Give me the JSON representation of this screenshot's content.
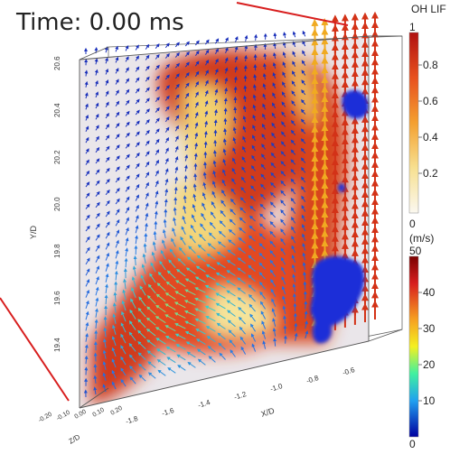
{
  "overlay": {
    "time_label": "Time: 0.00 ms"
  },
  "axes": {
    "x_label": "X/D",
    "y_label": "Y/D",
    "z_label": "Z/D",
    "x_ticks": [
      "-1.8",
      "-1.6",
      "-1.4",
      "-1.2",
      "-1.0",
      "-0.8",
      "-0.6"
    ],
    "y_ticks": [
      "20.6",
      "20.4",
      "20.2",
      "20.0",
      "19.8",
      "19.6",
      "19.4"
    ],
    "z_ticks": [
      "-0.20",
      "-0.10",
      "0.00",
      "0.10",
      "0.20"
    ]
  },
  "colorbar_oh": {
    "title": "OH LIF",
    "top": "1",
    "ticks": [
      "0.8",
      "0.6",
      "0.4",
      "0.2"
    ],
    "bottom": "0"
  },
  "colorbar_vel": {
    "title": "(m/s)",
    "top": "50",
    "ticks": [
      "40",
      "30",
      "20",
      "10"
    ],
    "bottom": "0"
  },
  "colors": {
    "flame_red": "#c8321c",
    "flame_yellow": "#f3dd7a",
    "iso_blue": "#1a2fd8",
    "box_line": "#555555",
    "pointer_red": "#d81e1e"
  }
}
